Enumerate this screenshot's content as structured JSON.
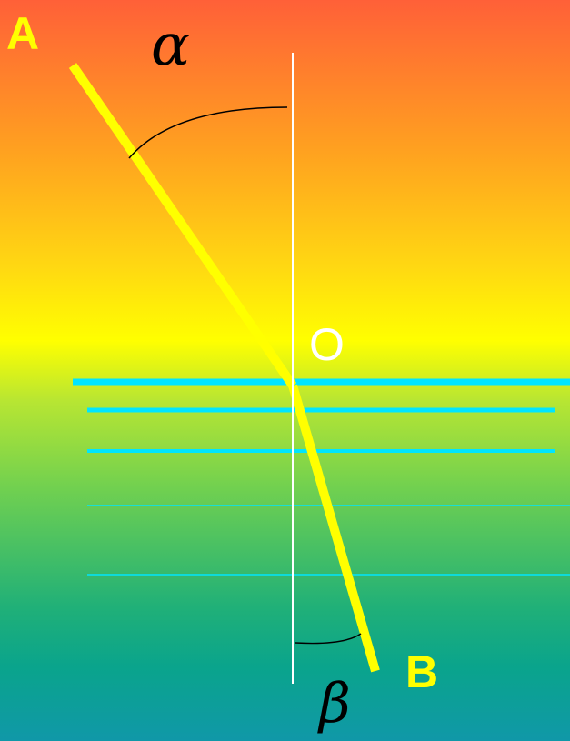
{
  "labels": {
    "point_a": "A",
    "point_b": "B",
    "point_o": "O",
    "angle_alpha": "α",
    "angle_beta": "β"
  },
  "colors": {
    "ray": "#ffff00",
    "interface_lines": "#00e5ff",
    "normal": "#ffffff",
    "angle_arcs": "#000000",
    "point_labels": "#ffff00",
    "o_label": "#ffffff"
  }
}
